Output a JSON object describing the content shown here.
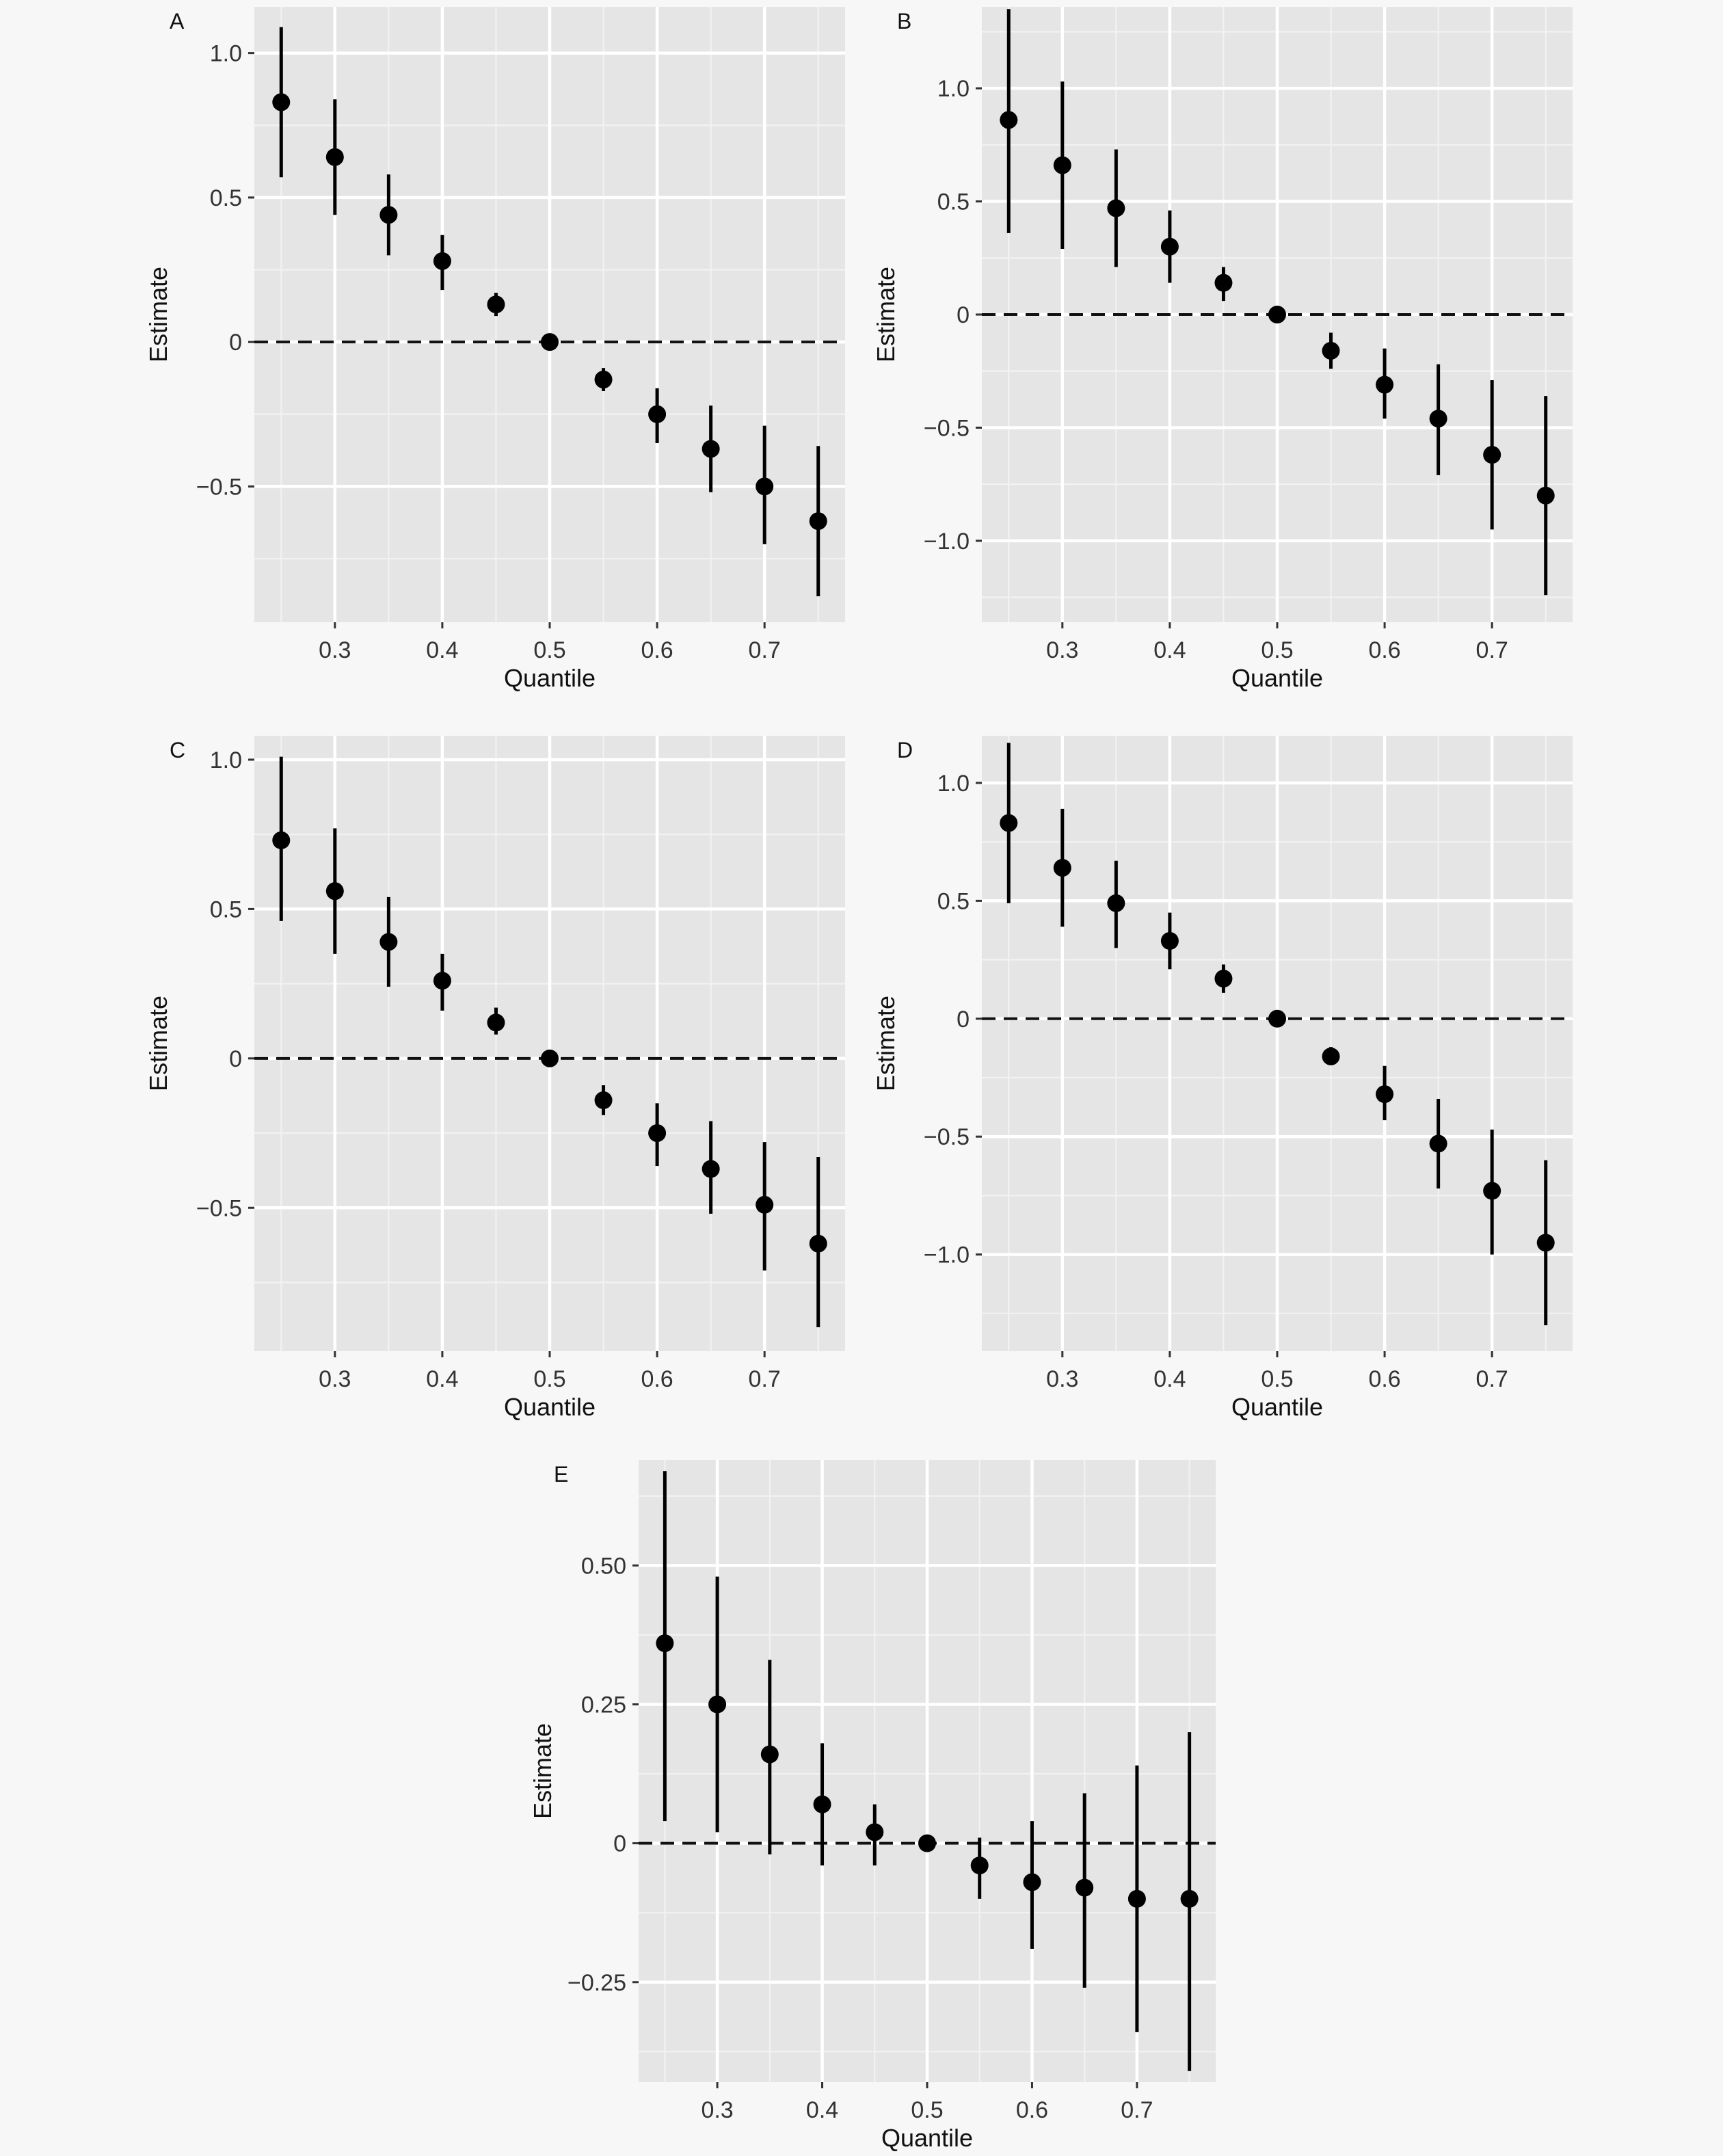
{
  "figure": {
    "zero_line_style": "dashed",
    "point_color": "#000000",
    "panel_background": "#e5e5e5",
    "page_background": "#f7f7f7"
  },
  "chart_data": [
    {
      "panel": "A",
      "type": "scatter",
      "xlabel": "Quantile",
      "ylabel": "Estimate",
      "xlim": [
        0.225,
        0.775
      ],
      "ylim": [
        -0.97,
        1.16
      ],
      "xticks": [
        0.3,
        0.4,
        0.5,
        0.6,
        0.7
      ],
      "xtick_labels": [
        "0.3",
        "0.4",
        "0.5",
        "0.6",
        "0.7"
      ],
      "yticks": [
        1.0,
        0.5,
        0,
        -0.5
      ],
      "ytick_labels": [
        "1.0",
        "0.5",
        "0",
        "−0.5"
      ],
      "reference_line": 0,
      "x": [
        0.25,
        0.3,
        0.35,
        0.4,
        0.45,
        0.5,
        0.55,
        0.6,
        0.65,
        0.7,
        0.75
      ],
      "y": [
        0.83,
        0.64,
        0.44,
        0.28,
        0.13,
        0.0,
        -0.13,
        -0.25,
        -0.37,
        -0.5,
        -0.62
      ],
      "lower": [
        0.57,
        0.44,
        0.3,
        0.18,
        0.09,
        0.0,
        -0.17,
        -0.35,
        -0.52,
        -0.7,
        -0.88
      ],
      "upper": [
        1.09,
        0.84,
        0.58,
        0.37,
        0.17,
        0.0,
        -0.09,
        -0.16,
        -0.22,
        -0.29,
        -0.36
      ]
    },
    {
      "panel": "B",
      "type": "scatter",
      "xlabel": "Quantile",
      "ylabel": "Estimate",
      "xlim": [
        0.225,
        0.775
      ],
      "ylim": [
        -1.36,
        1.36
      ],
      "xticks": [
        0.3,
        0.4,
        0.5,
        0.6,
        0.7
      ],
      "xtick_labels": [
        "0.3",
        "0.4",
        "0.5",
        "0.6",
        "0.7"
      ],
      "yticks": [
        1.0,
        0.5,
        0,
        -0.5,
        -1.0
      ],
      "ytick_labels": [
        "1.0",
        "0.5",
        "0",
        "−0.5",
        "−1.0"
      ],
      "reference_line": 0,
      "x": [
        0.25,
        0.3,
        0.35,
        0.4,
        0.45,
        0.5,
        0.55,
        0.6,
        0.65,
        0.7,
        0.75
      ],
      "y": [
        0.86,
        0.66,
        0.47,
        0.3,
        0.14,
        0.0,
        -0.16,
        -0.31,
        -0.46,
        -0.62,
        -0.8
      ],
      "lower": [
        0.36,
        0.29,
        0.21,
        0.14,
        0.06,
        0.0,
        -0.24,
        -0.46,
        -0.71,
        -0.95,
        -1.24
      ],
      "upper": [
        1.35,
        1.03,
        0.73,
        0.46,
        0.21,
        0.0,
        -0.08,
        -0.15,
        -0.22,
        -0.29,
        -0.36
      ]
    },
    {
      "panel": "C",
      "type": "scatter",
      "xlabel": "Quantile",
      "ylabel": "Estimate",
      "xlim": [
        0.225,
        0.775
      ],
      "ylim": [
        -0.98,
        1.08
      ],
      "xticks": [
        0.3,
        0.4,
        0.5,
        0.6,
        0.7
      ],
      "xtick_labels": [
        "0.3",
        "0.4",
        "0.5",
        "0.6",
        "0.7"
      ],
      "yticks": [
        1.0,
        0.5,
        0,
        -0.5
      ],
      "ytick_labels": [
        "1.0",
        "0.5",
        "0",
        "−0.5"
      ],
      "reference_line": 0,
      "x": [
        0.25,
        0.3,
        0.35,
        0.4,
        0.45,
        0.5,
        0.55,
        0.6,
        0.65,
        0.7,
        0.75
      ],
      "y": [
        0.73,
        0.56,
        0.39,
        0.26,
        0.12,
        0.0,
        -0.14,
        -0.25,
        -0.37,
        -0.49,
        -0.62
      ],
      "lower": [
        0.46,
        0.35,
        0.24,
        0.16,
        0.08,
        0.0,
        -0.19,
        -0.36,
        -0.52,
        -0.71,
        -0.9
      ],
      "upper": [
        1.01,
        0.77,
        0.54,
        0.35,
        0.17,
        0.0,
        -0.09,
        -0.15,
        -0.21,
        -0.28,
        -0.33
      ]
    },
    {
      "panel": "D",
      "type": "scatter",
      "xlabel": "Quantile",
      "ylabel": "Estimate",
      "xlim": [
        0.225,
        0.775
      ],
      "ylim": [
        -1.41,
        1.2
      ],
      "xticks": [
        0.3,
        0.4,
        0.5,
        0.6,
        0.7
      ],
      "xtick_labels": [
        "0.3",
        "0.4",
        "0.5",
        "0.6",
        "0.7"
      ],
      "yticks": [
        1.0,
        0.5,
        0,
        -0.5,
        -1.0
      ],
      "ytick_labels": [
        "1.0",
        "0.5",
        "0",
        "−0.5",
        "−1.0"
      ],
      "reference_line": 0,
      "x": [
        0.25,
        0.3,
        0.35,
        0.4,
        0.45,
        0.5,
        0.55,
        0.6,
        0.65,
        0.7,
        0.75
      ],
      "y": [
        0.83,
        0.64,
        0.49,
        0.33,
        0.17,
        0.0,
        -0.16,
        -0.32,
        -0.53,
        -0.73,
        -0.95
      ],
      "lower": [
        0.49,
        0.39,
        0.3,
        0.21,
        0.11,
        0.0,
        -0.19,
        -0.43,
        -0.72,
        -1.0,
        -1.3
      ],
      "upper": [
        1.17,
        0.89,
        0.67,
        0.45,
        0.23,
        0.0,
        -0.12,
        -0.2,
        -0.34,
        -0.47,
        -0.6
      ]
    },
    {
      "panel": "E",
      "type": "scatter",
      "xlabel": "Quantile",
      "ylabel": "Estimate",
      "xlim": [
        0.225,
        0.775
      ],
      "ylim": [
        -0.43,
        0.69
      ],
      "xticks": [
        0.3,
        0.4,
        0.5,
        0.6,
        0.7
      ],
      "xtick_labels": [
        "0.3",
        "0.4",
        "0.5",
        "0.6",
        "0.7"
      ],
      "yticks": [
        0.5,
        0.25,
        0,
        -0.25
      ],
      "ytick_labels": [
        "0.50",
        "0.25",
        "0",
        "−0.25"
      ],
      "reference_line": 0,
      "x": [
        0.25,
        0.3,
        0.35,
        0.4,
        0.45,
        0.5,
        0.55,
        0.6,
        0.65,
        0.7,
        0.75
      ],
      "y": [
        0.36,
        0.25,
        0.16,
        0.07,
        0.02,
        0.0,
        -0.04,
        -0.07,
        -0.08,
        -0.1,
        -0.1
      ],
      "lower": [
        0.04,
        0.02,
        -0.02,
        -0.04,
        -0.04,
        0.0,
        -0.1,
        -0.19,
        -0.26,
        -0.34,
        -0.41
      ],
      "upper": [
        0.67,
        0.48,
        0.33,
        0.18,
        0.07,
        0.0,
        0.01,
        0.04,
        0.09,
        0.14,
        0.2
      ]
    }
  ]
}
